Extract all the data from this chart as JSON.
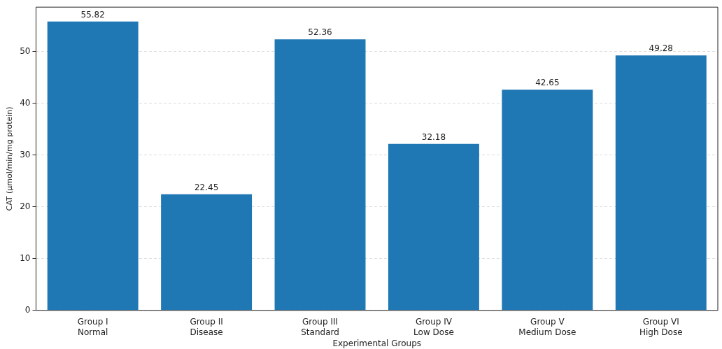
{
  "chart_data": {
    "type": "bar",
    "xlabel": "Experimental Groups",
    "ylabel": "CAT (µmol/min/mg protein)",
    "categories": [
      "Group I\nNormal",
      "Group II\nDisease",
      "Group III\nStandard",
      "Group IV\nLow Dose",
      "Group V\nMedium Dose",
      "Group VI\nHigh Dose"
    ],
    "values": [
      55.82,
      22.45,
      52.36,
      32.18,
      42.65,
      49.28
    ],
    "color": "#1f77b4",
    "ylim": [
      0,
      58.6
    ],
    "yticks": [
      0,
      10,
      20,
      30,
      40,
      50
    ],
    "grid": "y",
    "data_labels": true,
    "legend": false
  }
}
